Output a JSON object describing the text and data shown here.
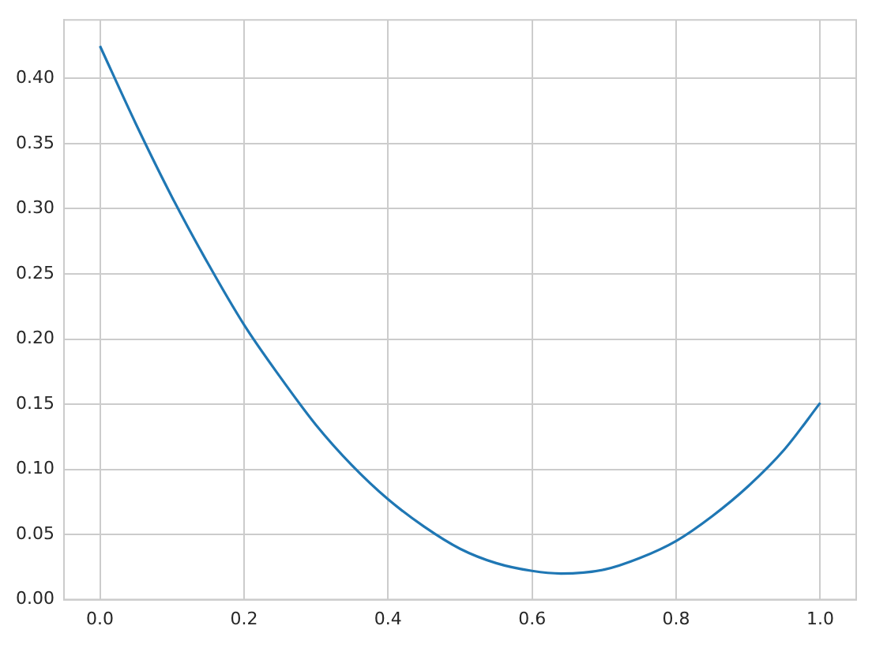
{
  "chart_data": {
    "type": "line",
    "x": [
      0,
      0.05,
      0.1,
      0.15,
      0.2,
      0.25,
      0.3,
      0.35,
      0.4,
      0.45,
      0.5,
      0.55,
      0.6,
      0.64,
      0.7,
      0.75,
      0.8,
      0.85,
      0.9,
      0.95,
      1.0
    ],
    "series": [
      {
        "color": "#1f77b4",
        "values": [
          0.425,
          0.365,
          0.309,
          0.258,
          0.211,
          0.171,
          0.134,
          0.103,
          0.077,
          0.056,
          0.039,
          0.028,
          0.022,
          0.02,
          0.023,
          0.032,
          0.045,
          0.064,
          0.087,
          0.115,
          0.151
        ]
      }
    ],
    "xlim": [
      -0.05,
      1.05
    ],
    "xticks": [
      {
        "value": 0,
        "label": "0.0"
      },
      0.2,
      0.4,
      0.6,
      0.8,
      {
        "value": 1,
        "label": "1.0"
      }
    ],
    "ylim": [
      0,
      0.445
    ],
    "yticks": [
      {
        "value": 0,
        "label": "0.00"
      },
      0.05,
      {
        "value": 0.1,
        "label": "0.10"
      },
      0.15,
      {
        "value": 0.2,
        "label": "0.20"
      },
      0.25,
      {
        "value": 0.3,
        "label": "0.30"
      },
      0.35,
      {
        "value": 0.4,
        "label": "0.40"
      }
    ],
    "grid": true,
    "legend": false,
    "marker": "none",
    "line_style": "solid"
  }
}
